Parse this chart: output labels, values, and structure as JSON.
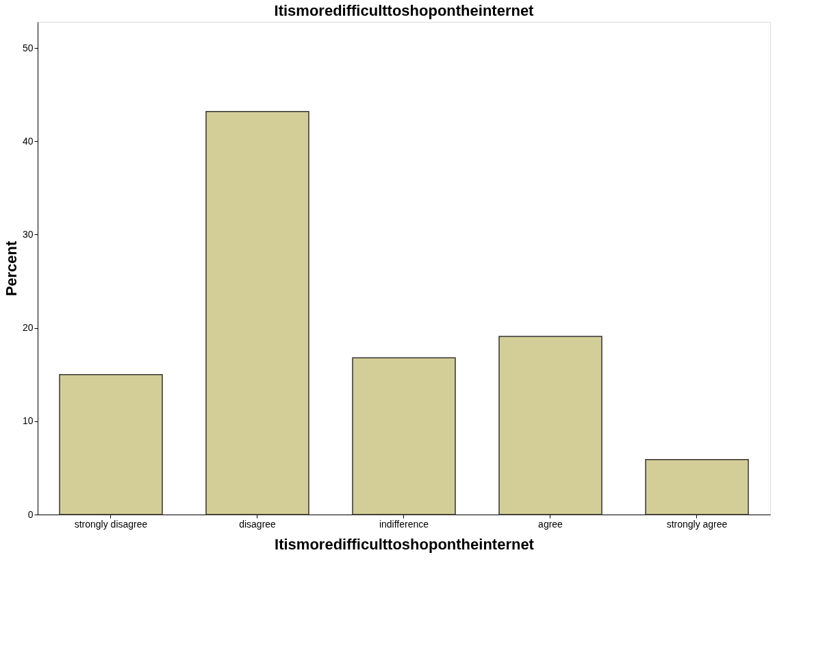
{
  "chart_data": {
    "type": "bar",
    "title": "Itismoredifficulttoshopontheinternet",
    "xlabel": "Itismoredifficulttoshopontheinternet",
    "ylabel": "Percent",
    "categories": [
      "strongly disagree",
      "disagree",
      "indifference",
      "agree",
      "strongly agree"
    ],
    "values": [
      15.0,
      43.2,
      16.8,
      19.1,
      5.9
    ],
    "color": "#d3ce97",
    "ylim": [
      0,
      52.8
    ],
    "yticks": [
      0,
      10,
      20,
      30,
      40,
      50
    ],
    "grid": false
  }
}
